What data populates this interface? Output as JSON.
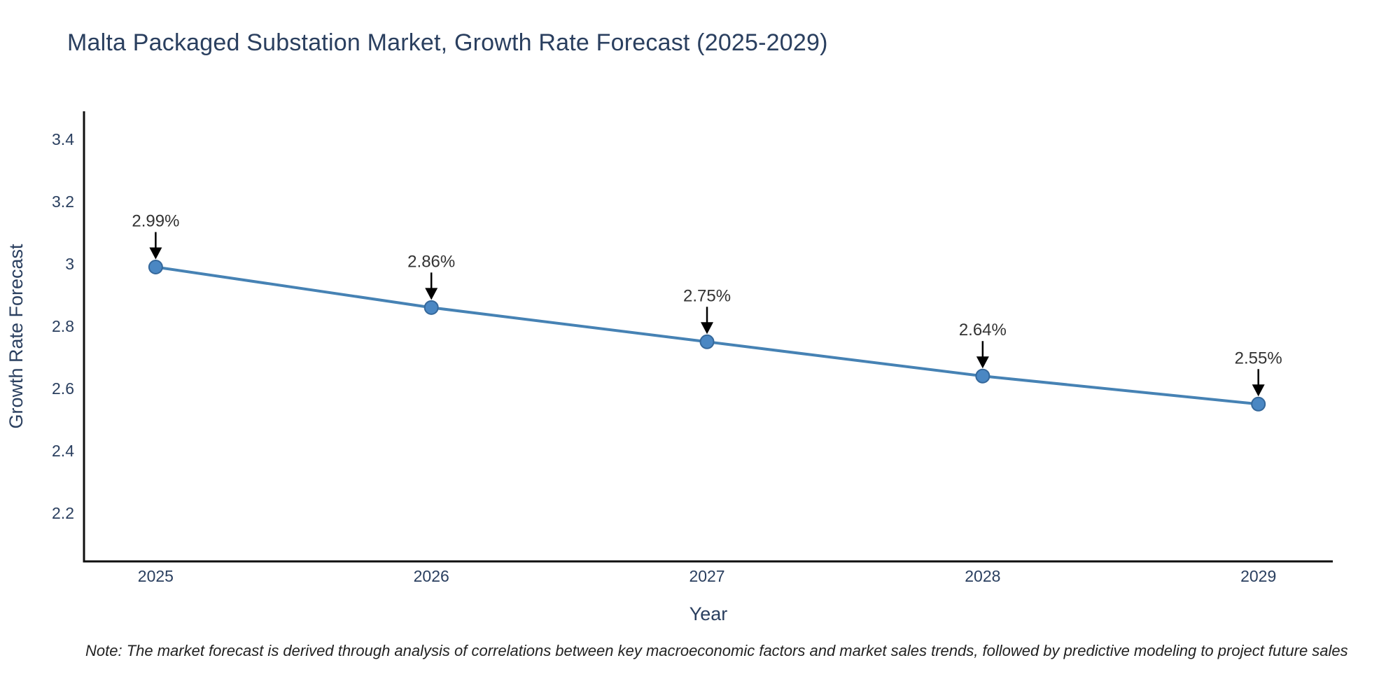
{
  "title": "Malta Packaged Substation Market, Growth Rate Forecast (2025-2029)",
  "note": "Note: The market forecast is derived through analysis of correlations between key macroeconomic factors and market sales trends, followed by predictive modeling to project future sales",
  "chart_data": {
    "type": "line",
    "title": "Malta Packaged Substation Market, Growth Rate Forecast (2025-2029)",
    "xlabel": "Year",
    "ylabel": "Growth Rate Forecast",
    "x": [
      2025,
      2026,
      2027,
      2028,
      2029
    ],
    "y": [
      2.99,
      2.86,
      2.75,
      2.64,
      2.55
    ],
    "point_labels": [
      "2.99%",
      "2.86%",
      "2.75%",
      "2.64%",
      "2.55%"
    ],
    "xtick_labels": [
      "2025",
      "2026",
      "2027",
      "2028",
      "2029"
    ],
    "yticks": [
      3.4,
      3.2,
      3.0,
      2.8,
      2.6,
      2.4,
      2.2
    ],
    "ytick_labels": [
      "3.4",
      "3.2",
      "3",
      "2.8",
      "2.6",
      "2.4",
      "2.2"
    ],
    "xlim": [
      2024.74,
      2029.27
    ],
    "ylim": [
      2.045,
      3.49
    ],
    "grid": false,
    "legend": "none",
    "annotation_arrows": true,
    "colors": {
      "line": "#4682b4",
      "marker_fill": "#4a87c3",
      "marker_edge": "#35689b",
      "axis": "#0f0f0f",
      "tick_text": "#2a3f5f",
      "axis_title_text": "#2a3f5f",
      "title_text": "#2a3f5f",
      "annotation_text": "#333333",
      "arrow": "#000000",
      "background": "#ffffff"
    }
  }
}
